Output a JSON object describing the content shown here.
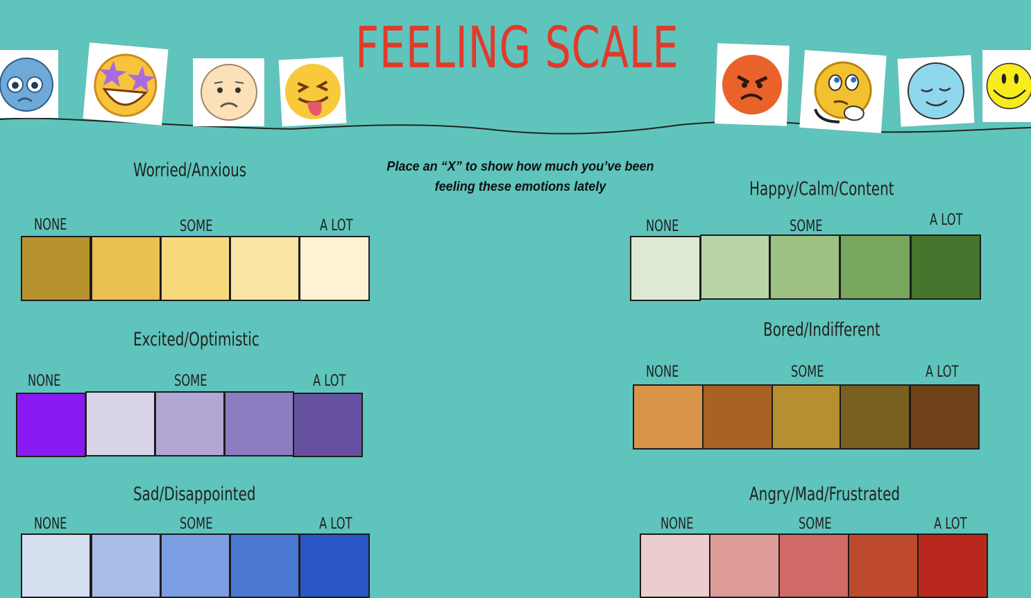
{
  "title": "FEELING SCALE",
  "instructions": {
    "line1": "Place an “X” to show how much you’ve been",
    "line2": "feeling these emotions lately"
  },
  "emojis": [
    "worried-face-icon",
    "star-struck-icon",
    "sad-face-icon",
    "tongue-out-squinting-icon",
    "angry-face-icon",
    "thinking-face-icon",
    "calm-face-icon",
    "smiley-face-icon"
  ],
  "scales": [
    {
      "id": "worried",
      "heading": "Worried/Anxious",
      "none": "NONE",
      "some": "SOME",
      "alot": "A LOT",
      "colors": [
        "#b8922f",
        "#e8c152",
        "#f7d87a",
        "#f9e5a6",
        "#fdf3d4"
      ]
    },
    {
      "id": "excited",
      "heading": "Excited/Optimistic",
      "none": "NONE",
      "some": "SOME",
      "alot": "A LOT",
      "colors": [
        "#8b1af2",
        "#d9d4e8",
        "#b2a6d4",
        "#8b7dbf",
        "#6651a0"
      ]
    },
    {
      "id": "sad",
      "heading": "Sad/Disappointed",
      "none": "NONE",
      "some": "SOME",
      "alot": "A LOT",
      "colors": [
        "#d5dff0",
        "#aabde9",
        "#7b9ee3",
        "#4b78d1",
        "#2a56c6"
      ]
    },
    {
      "id": "happy",
      "heading": "Happy/Calm/Content",
      "none": "NONE",
      "some": "SOME",
      "alot": "A LOT",
      "colors": [
        "#dde9d4",
        "#b9d4a8",
        "#9dc182",
        "#78a65c",
        "#47752d"
      ]
    },
    {
      "id": "bored",
      "heading": "Bored/Indifferent",
      "none": "NONE",
      "some": "SOME",
      "alot": "A LOT",
      "colors": [
        "#da9449",
        "#a86224",
        "#b68f30",
        "#786021",
        "#6e4118"
      ]
    },
    {
      "id": "angry",
      "heading": "Angry/Mad/Frustrated",
      "none": "NONE",
      "some": "SOME",
      "alot": "A LOT",
      "colors": [
        "#ebcdcd",
        "#dd9b98",
        "#d06a66",
        "#bd4a2e",
        "#b9281e"
      ]
    }
  ]
}
